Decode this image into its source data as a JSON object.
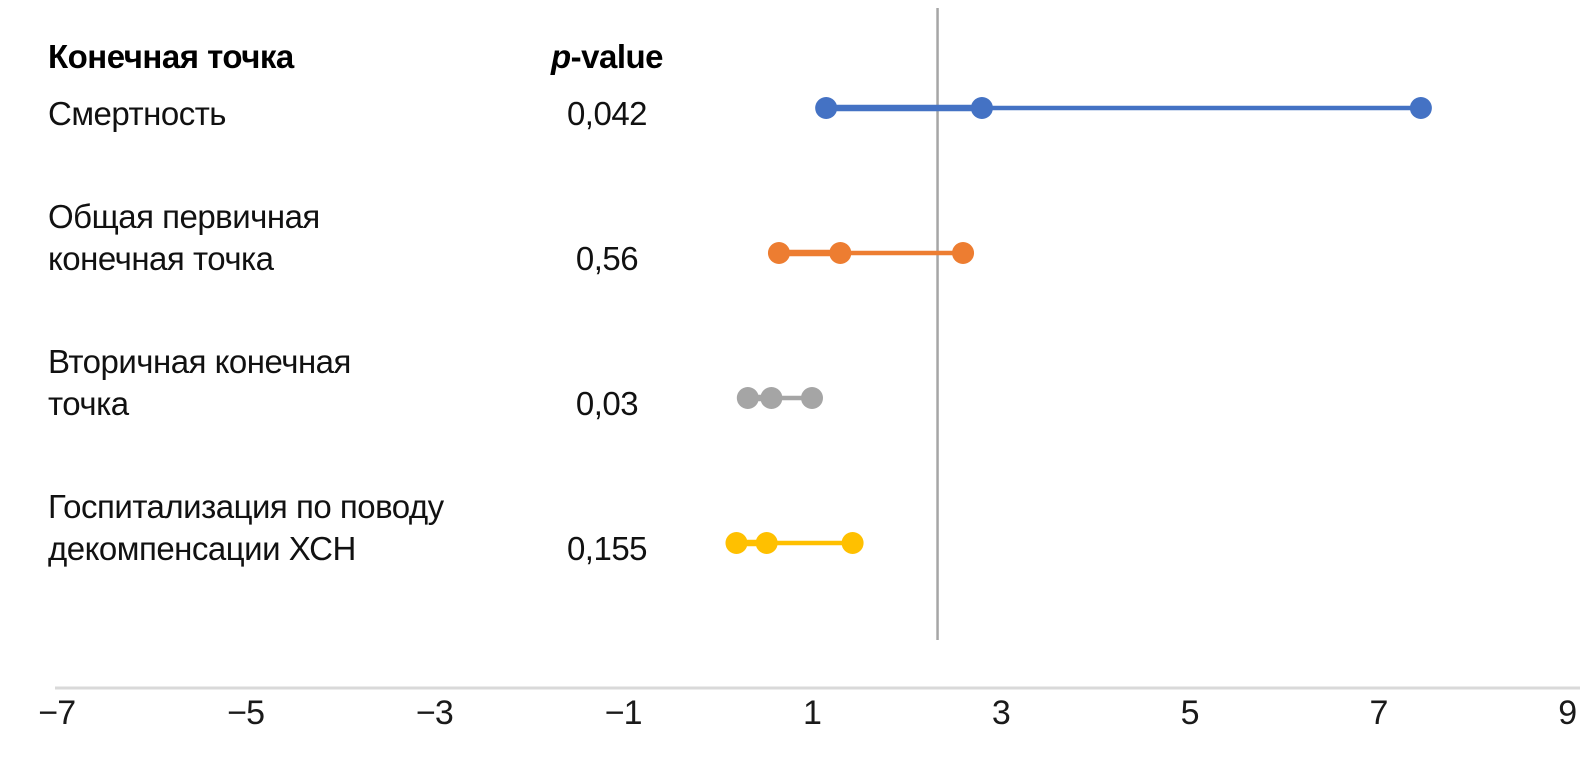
{
  "chart_data": {
    "type": "forest",
    "title": "",
    "header": {
      "endpoint_label": "Конечная точка",
      "p_italic": "p",
      "p_rest": "-value"
    },
    "x_axis": {
      "min": -7,
      "max": 9,
      "ticks": [
        -7,
        -5,
        -3,
        -1,
        1,
        3,
        5,
        7,
        9
      ],
      "tick_labels": [
        "−7",
        "−5",
        "−3",
        "−1",
        "1",
        "3",
        "5",
        "7",
        "9"
      ],
      "axis_color": "#d9d9d9",
      "grid": false
    },
    "reference_line": {
      "x": 2.33,
      "color": "#a6a6a6"
    },
    "legend": null,
    "rows": [
      {
        "label": "Смертность",
        "label_lines": [
          "Смертность"
        ],
        "p_value": "0,042",
        "color": "#4472c4",
        "low": 1.15,
        "mid": 2.8,
        "high": 7.45
      },
      {
        "label": "Общая первичная конечная точка",
        "label_lines": [
          "Общая первичная",
          "конечная точка"
        ],
        "p_value": "0,56",
        "color": "#ed7d31",
        "low": 0.65,
        "mid": 1.3,
        "high": 2.6
      },
      {
        "label": "Вторичная конечная точка",
        "label_lines": [
          "Вторичная конечная",
          "точка"
        ],
        "p_value": "0,03",
        "color": "#a5a5a5",
        "low": 0.32,
        "mid": 0.57,
        "high": 1.0
      },
      {
        "label": "Госпитализация по поводу декомпенсации ХСН",
        "label_lines": [
          "Госпитализация по поводу",
          "декомпенсации ХСН"
        ],
        "p_value": "0,155",
        "color": "#ffc000",
        "low": 0.2,
        "mid": 0.52,
        "high": 1.43
      }
    ]
  }
}
